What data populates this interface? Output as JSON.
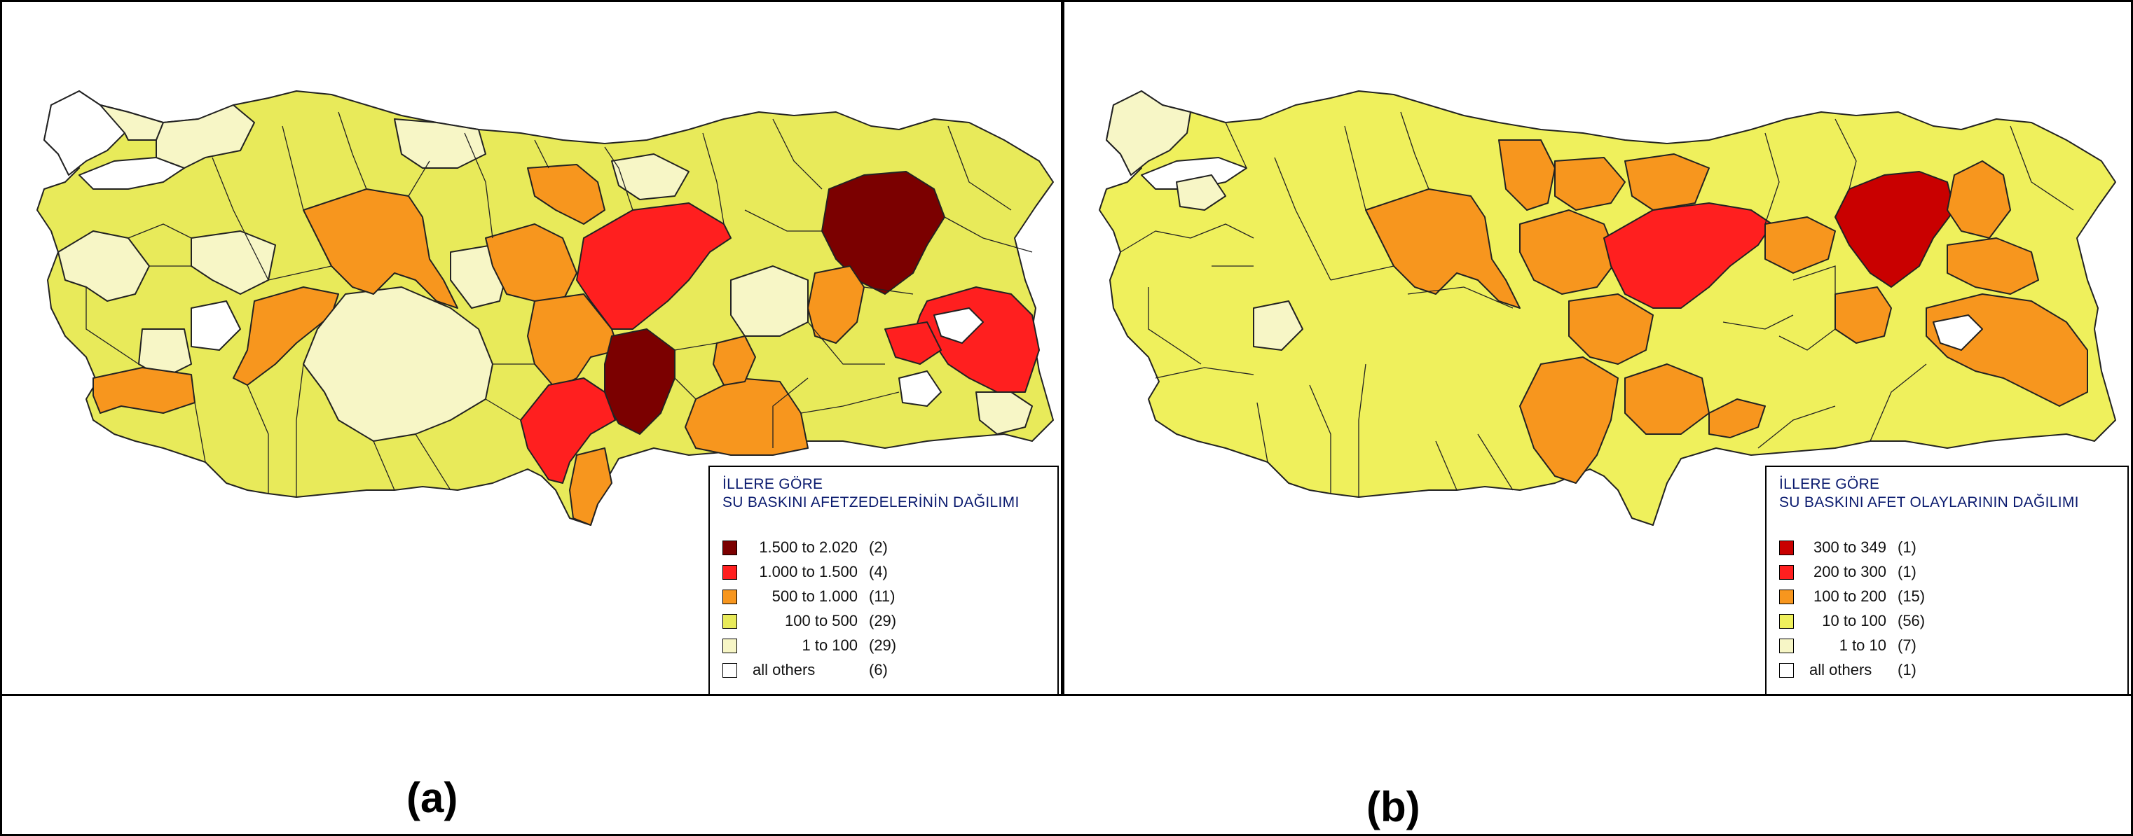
{
  "panel_a": {
    "legend_title_line1": "İLLERE GÖRE",
    "legend_title_line2": "SU BASKINI AFETZEDELERİNİN DAĞILIMI",
    "legend_items": [
      {
        "range": "1.500 to 2.020",
        "count": "(2)",
        "color": "#7b0000"
      },
      {
        "range": "1.000 to 1.500",
        "count": "(4)",
        "color": "#ff1f1f"
      },
      {
        "range": "500 to 1.000",
        "count": "(11)",
        "color": "#f7961e"
      },
      {
        "range": "100 to    500",
        "count": "(29)",
        "color": "#e8ea5a"
      },
      {
        "range": "1 to    100",
        "count": "(29)",
        "color": "#f7f6c6"
      },
      {
        "range": "all others",
        "count": "(6)",
        "color": "#ffffff"
      }
    ],
    "caption": "(a)"
  },
  "panel_b": {
    "legend_title_line1": "İLLERE GÖRE",
    "legend_title_line2": "SU BASKINI AFET OLAYLARININ DAĞILIMI",
    "legend_items": [
      {
        "range": "300 to 349",
        "count": "(1)",
        "color": "#c90000"
      },
      {
        "range": "200 to 300",
        "count": "(1)",
        "color": "#ff1f1f"
      },
      {
        "range": "100 to 200",
        "count": "(15)",
        "color": "#f7961e"
      },
      {
        "range": "10 to 100",
        "count": "(56)",
        "color": "#eff05c"
      },
      {
        "range": "1 to    10",
        "count": "(7)",
        "color": "#f7f6c6"
      },
      {
        "range": "all others",
        "count": "(1)",
        "color": "#ffffff"
      }
    ],
    "caption": "(b)"
  }
}
